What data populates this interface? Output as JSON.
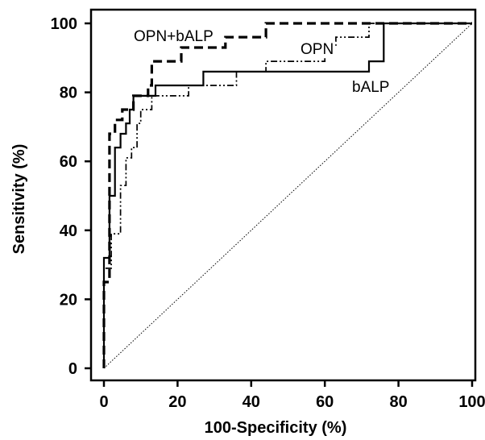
{
  "chart_data": {
    "type": "line",
    "title": "",
    "xlabel": "100-Specificity (%)",
    "ylabel": "Sensitivity (%)",
    "xlim": [
      0,
      100
    ],
    "ylim": [
      0,
      100
    ],
    "xticks": [
      0,
      20,
      40,
      60,
      80,
      100
    ],
    "yticks": [
      0,
      20,
      40,
      60,
      80,
      100
    ],
    "grid": false,
    "series": [
      {
        "name": "OPN+bALP",
        "style": "dashed",
        "points": [
          [
            0,
            0
          ],
          [
            0,
            25
          ],
          [
            1.5,
            25
          ],
          [
            1.5,
            68
          ],
          [
            3,
            68
          ],
          [
            3,
            72
          ],
          [
            5,
            72
          ],
          [
            5,
            75
          ],
          [
            8,
            75
          ],
          [
            8,
            79
          ],
          [
            12,
            79
          ],
          [
            12,
            82
          ],
          [
            13,
            82
          ],
          [
            13,
            89
          ],
          [
            21,
            89
          ],
          [
            21,
            93
          ],
          [
            33,
            93
          ],
          [
            33,
            96
          ],
          [
            44,
            96
          ],
          [
            44,
            100
          ],
          [
            100,
            100
          ]
        ]
      },
      {
        "name": "OPN",
        "style": "dash-dot-dot",
        "points": [
          [
            0,
            0
          ],
          [
            0,
            29
          ],
          [
            2,
            29
          ],
          [
            2,
            39
          ],
          [
            4.5,
            39
          ],
          [
            4.5,
            53
          ],
          [
            6,
            53
          ],
          [
            6,
            61
          ],
          [
            7.5,
            61
          ],
          [
            7.5,
            64
          ],
          [
            9,
            64
          ],
          [
            9,
            71
          ],
          [
            10,
            71
          ],
          [
            10,
            75
          ],
          [
            13,
            75
          ],
          [
            13,
            79
          ],
          [
            23,
            79
          ],
          [
            23,
            82
          ],
          [
            36,
            82
          ],
          [
            36,
            86
          ],
          [
            44,
            86
          ],
          [
            44,
            89
          ],
          [
            60,
            89
          ],
          [
            60,
            93
          ],
          [
            63,
            93
          ],
          [
            63,
            96
          ],
          [
            72,
            96
          ],
          [
            72,
            100
          ],
          [
            100,
            100
          ]
        ]
      },
      {
        "name": "bALP",
        "style": "solid",
        "points": [
          [
            0,
            0
          ],
          [
            0,
            32
          ],
          [
            1.5,
            32
          ],
          [
            1.5,
            50
          ],
          [
            3,
            50
          ],
          [
            3,
            64
          ],
          [
            4.5,
            64
          ],
          [
            4.5,
            68
          ],
          [
            6,
            68
          ],
          [
            6,
            71
          ],
          [
            7,
            71
          ],
          [
            7,
            75
          ],
          [
            8,
            75
          ],
          [
            8,
            79
          ],
          [
            14,
            79
          ],
          [
            14,
            82
          ],
          [
            27,
            82
          ],
          [
            27,
            86
          ],
          [
            72,
            86
          ],
          [
            72,
            89
          ],
          [
            76,
            89
          ],
          [
            76,
            100
          ],
          [
            100,
            100
          ]
        ]
      },
      {
        "name": "",
        "style": "dotted",
        "points": [
          [
            0,
            0
          ],
          [
            100,
            100
          ]
        ]
      }
    ]
  }
}
